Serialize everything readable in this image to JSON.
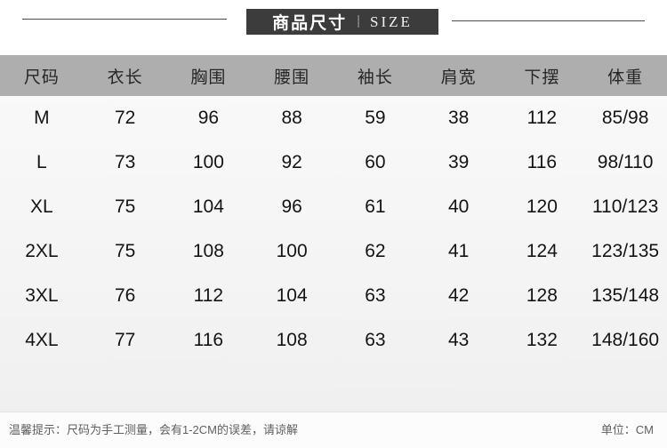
{
  "title": {
    "cn": "商品尺寸",
    "divider": "|",
    "en": "SIZE"
  },
  "chart_data": {
    "type": "table",
    "title": "商品尺寸 | SIZE",
    "unit": "CM",
    "columns": [
      "尺码",
      "衣长",
      "胸围",
      "腰围",
      "袖长",
      "肩宽",
      "下摆",
      "体重"
    ],
    "rows": [
      [
        "M",
        "72",
        "96",
        "88",
        "59",
        "38",
        "112",
        "85/98"
      ],
      [
        "L",
        "73",
        "100",
        "92",
        "60",
        "39",
        "116",
        "98/110"
      ],
      [
        "XL",
        "75",
        "104",
        "96",
        "61",
        "40",
        "120",
        "110/123"
      ],
      [
        "2XL",
        "75",
        "108",
        "100",
        "62",
        "41",
        "124",
        "123/135"
      ],
      [
        "3XL",
        "76",
        "112",
        "104",
        "63",
        "42",
        "128",
        "135/148"
      ],
      [
        "4XL",
        "77",
        "116",
        "108",
        "63",
        "43",
        "132",
        "148/160"
      ]
    ]
  },
  "footer": {
    "note": "温馨提示：尺码为手工测量，会有1-2CM的误差，请谅解",
    "unit_label": "单位：CM"
  },
  "colors": {
    "title_box_bg": "#3c3c3c",
    "title_text": "#ffffff",
    "header_row_bg": "#aeaeae",
    "cell_text": "#141414",
    "note_text": "#5f5f5f"
  }
}
